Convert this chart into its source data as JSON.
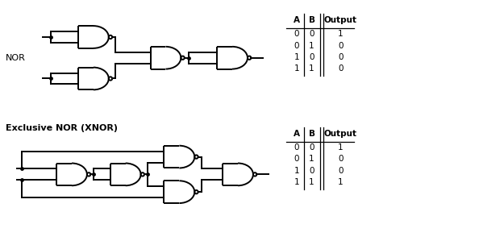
{
  "background_color": "#ffffff",
  "nor_label": "NOR",
  "xnor_label": "Exclusive NOR (XNOR)",
  "nor_truth": {
    "A": [
      0,
      0,
      1,
      1
    ],
    "B": [
      0,
      1,
      0,
      1
    ],
    "Output": [
      1,
      0,
      0,
      0
    ]
  },
  "xnor_truth": {
    "A": [
      0,
      0,
      1,
      1
    ],
    "B": [
      0,
      1,
      0,
      1
    ],
    "Output": [
      1,
      0,
      0,
      1
    ]
  },
  "lc": "#000000",
  "lw": 1.4,
  "br": 0.022,
  "gw": 0.38,
  "gh": 0.28,
  "font_size": 7.5,
  "label_fs": 8,
  "title_fs": 8
}
